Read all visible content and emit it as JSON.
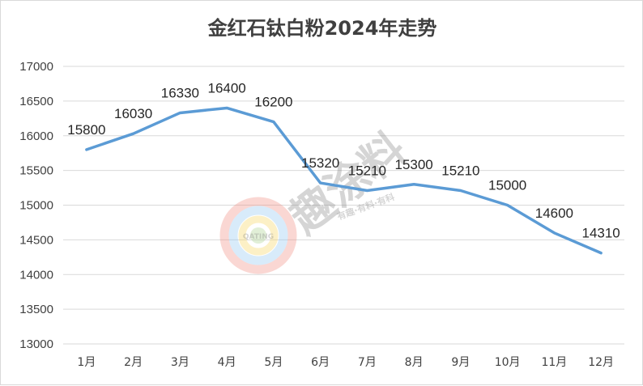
{
  "chart_data": {
    "type": "line",
    "title": "金红石钛白粉2024年走势",
    "categories": [
      "1月",
      "2月",
      "3月",
      "4月",
      "5月",
      "6月",
      "7月",
      "8月",
      "9月",
      "10月",
      "11月",
      "12月"
    ],
    "series": [
      {
        "values": [
          15800,
          16030,
          16330,
          16400,
          16200,
          15320,
          15210,
          15300,
          15210,
          15000,
          14600,
          14310
        ]
      }
    ],
    "ylim": [
      13000,
      17000
    ],
    "yticks": [
      13000,
      13500,
      14000,
      14500,
      15000,
      15500,
      16000,
      16500,
      17000
    ],
    "xlabel": "",
    "ylabel": "",
    "grid": true,
    "legend": "none",
    "line_color": "#5b9bd5",
    "grid_color": "#d9d9d9"
  },
  "watermark": {
    "main_text": "趣涂料",
    "sub_text": "有趣·有料·有科",
    "badge_text": "QATING",
    "icon": "coating-logo-icon"
  }
}
